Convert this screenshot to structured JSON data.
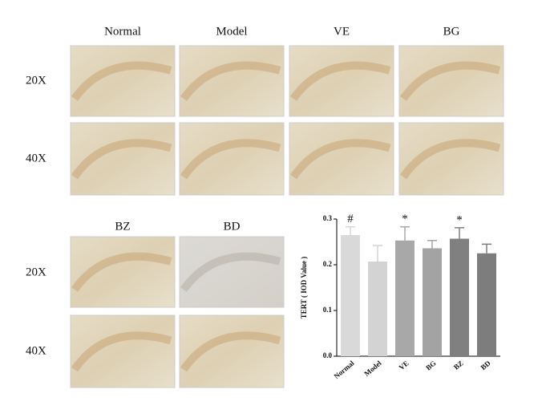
{
  "figure": {
    "top_columns": [
      "Normal",
      "Model",
      "VE",
      "BG"
    ],
    "bottom_columns": [
      "BZ",
      "BD"
    ],
    "row_labels": [
      "20X",
      "40X"
    ]
  },
  "chart_data": {
    "type": "bar",
    "y_label": "TERT ( IOD Value )",
    "categories": [
      "Normal",
      "Model",
      "VE",
      "BG",
      "BZ",
      "BD"
    ],
    "values": [
      0.265,
      0.207,
      0.253,
      0.236,
      0.257,
      0.225
    ],
    "errors": [
      0.018,
      0.035,
      0.03,
      0.017,
      0.024,
      0.02
    ],
    "annotations": [
      "#",
      null,
      "*",
      null,
      "*",
      null
    ],
    "colors": [
      "#d9d9d9",
      "#d3d3d3",
      "#a8a8a8",
      "#a3a3a3",
      "#808080",
      "#7d7d7d"
    ],
    "ylim": [
      0,
      0.3
    ],
    "yticks": [
      {
        "value": 0,
        "label": "0.0"
      },
      0.1,
      0.2,
      0.3
    ]
  }
}
